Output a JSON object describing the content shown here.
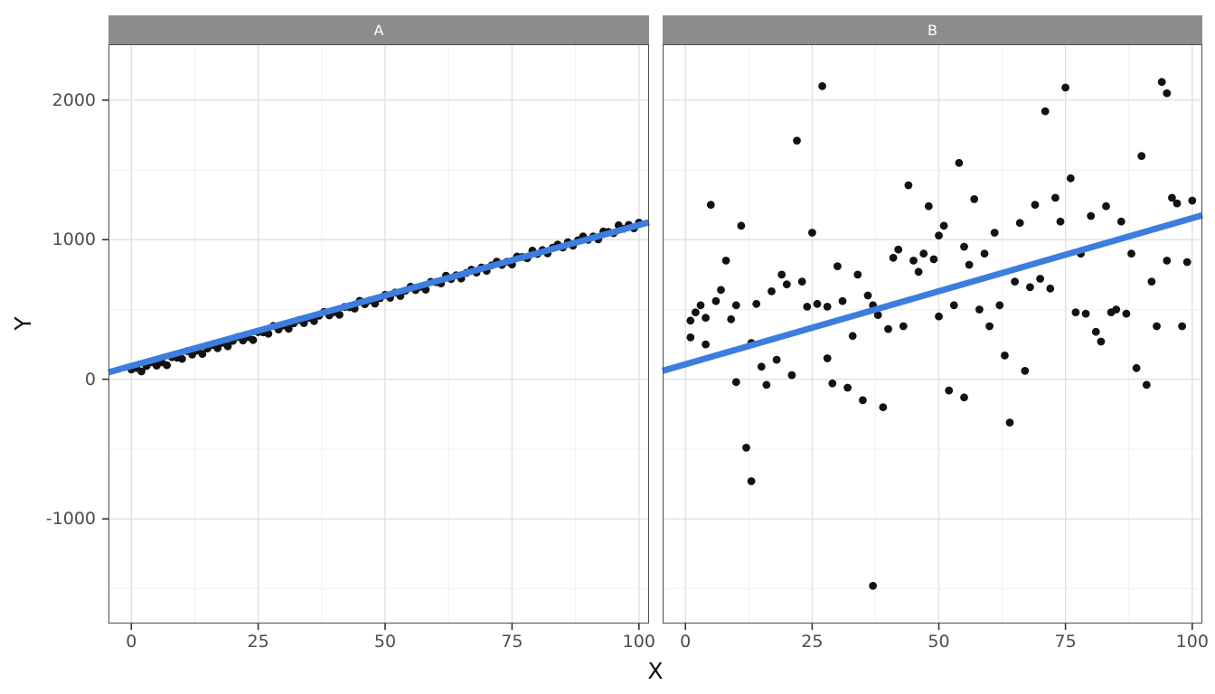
{
  "figure": {
    "background": "#ffffff",
    "strip_bg": "#8c8c8c",
    "strip_text": "#ffffff",
    "panel_bg": "#ffffff",
    "panel_border": "#4d4d4d",
    "grid_major": "#e0e0e0",
    "grid_minor": "#f0f0f0",
    "tick_mark": "#333333",
    "tick_label_color": "#4d4d4d",
    "axis_title_color": "#111111",
    "point_color": "#121212",
    "trend_color": "#3b7edd"
  },
  "chart_data": {
    "type": "scatter",
    "title": "",
    "xlabel": "X",
    "ylabel": "Y",
    "legend": "none",
    "grid": "on",
    "x_domain": [
      -4.5,
      102
    ],
    "y_domain": [
      -1750,
      2400
    ],
    "x_ticks": [
      0,
      25,
      50,
      75,
      100
    ],
    "y_ticks": [
      -1000,
      0,
      1000,
      2000
    ],
    "x_minor": [
      12.5,
      37.5,
      62.5,
      87.5
    ],
    "y_minor": [
      -1500,
      -500,
      500,
      1500
    ],
    "facets": [
      {
        "label": "A",
        "trend": {
          "x": [
            -4.5,
            102
          ],
          "y": [
            50,
            1125
          ]
        },
        "points": [
          [
            0,
            70
          ],
          [
            1,
            81
          ],
          [
            2,
            56
          ],
          [
            3,
            95
          ],
          [
            4,
            122
          ],
          [
            5,
            98
          ],
          [
            6,
            122
          ],
          [
            7,
            101
          ],
          [
            8,
            158
          ],
          [
            9,
            155
          ],
          [
            10,
            146
          ],
          [
            11,
            202
          ],
          [
            12,
            177
          ],
          [
            13,
            205
          ],
          [
            14,
            181
          ],
          [
            15,
            221
          ],
          [
            16,
            245
          ],
          [
            17,
            223
          ],
          [
            18,
            261
          ],
          [
            19,
            236
          ],
          [
            20,
            275
          ],
          [
            21,
            303
          ],
          [
            22,
            278
          ],
          [
            23,
            302
          ],
          [
            24,
            281
          ],
          [
            25,
            338
          ],
          [
            26,
            336
          ],
          [
            27,
            326
          ],
          [
            28,
            382
          ],
          [
            29,
            357
          ],
          [
            30,
            385
          ],
          [
            31,
            362
          ],
          [
            32,
            401
          ],
          [
            33,
            425
          ],
          [
            34,
            403
          ],
          [
            35,
            441
          ],
          [
            36,
            417
          ],
          [
            37,
            455
          ],
          [
            38,
            483
          ],
          [
            39,
            458
          ],
          [
            40,
            482
          ],
          [
            41,
            462
          ],
          [
            42,
            518
          ],
          [
            43,
            516
          ],
          [
            44,
            506
          ],
          [
            45,
            562
          ],
          [
            46,
            538
          ],
          [
            47,
            565
          ],
          [
            48,
            542
          ],
          [
            49,
            581
          ],
          [
            50,
            605
          ],
          [
            51,
            584
          ],
          [
            52,
            621
          ],
          [
            53,
            597
          ],
          [
            54,
            635
          ],
          [
            55,
            663
          ],
          [
            56,
            639
          ],
          [
            57,
            662
          ],
          [
            58,
            642
          ],
          [
            59,
            698
          ],
          [
            60,
            696
          ],
          [
            61,
            687
          ],
          [
            62,
            742
          ],
          [
            63,
            718
          ],
          [
            64,
            745
          ],
          [
            65,
            722
          ],
          [
            66,
            762
          ],
          [
            67,
            785
          ],
          [
            68,
            764
          ],
          [
            69,
            801
          ],
          [
            70,
            777
          ],
          [
            71,
            816
          ],
          [
            72,
            843
          ],
          [
            73,
            819
          ],
          [
            74,
            842
          ],
          [
            75,
            822
          ],
          [
            76,
            879
          ],
          [
            77,
            876
          ],
          [
            78,
            867
          ],
          [
            79,
            922
          ],
          [
            80,
            898
          ],
          [
            81,
            926
          ],
          [
            82,
            902
          ],
          [
            83,
            942
          ],
          [
            84,
            965
          ],
          [
            85,
            944
          ],
          [
            86,
            982
          ],
          [
            87,
            957
          ],
          [
            88,
            996
          ],
          [
            89,
            1023
          ],
          [
            90,
            999
          ],
          [
            91,
            1023
          ],
          [
            92,
            1002
          ],
          [
            93,
            1059
          ],
          [
            94,
            1056
          ],
          [
            95,
            1047
          ],
          [
            96,
            1103
          ],
          [
            97,
            1078
          ],
          [
            98,
            1106
          ],
          [
            99,
            1082
          ],
          [
            100,
            1122
          ]
        ]
      },
      {
        "label": "B",
        "trend": {
          "x": [
            -4.5,
            102
          ],
          "y": [
            60,
            1175
          ]
        },
        "points": [
          [
            1,
            420
          ],
          [
            1,
            300
          ],
          [
            2,
            480
          ],
          [
            3,
            530
          ],
          [
            4,
            250
          ],
          [
            4,
            440
          ],
          [
            5,
            1250
          ],
          [
            6,
            560
          ],
          [
            7,
            640
          ],
          [
            8,
            850
          ],
          [
            9,
            430
          ],
          [
            10,
            -20
          ],
          [
            10,
            530
          ],
          [
            11,
            1100
          ],
          [
            12,
            -490
          ],
          [
            13,
            260
          ],
          [
            13,
            -730
          ],
          [
            14,
            540
          ],
          [
            15,
            90
          ],
          [
            16,
            -40
          ],
          [
            17,
            630
          ],
          [
            18,
            140
          ],
          [
            19,
            750
          ],
          [
            20,
            680
          ],
          [
            21,
            30
          ],
          [
            22,
            1710
          ],
          [
            23,
            700
          ],
          [
            24,
            520
          ],
          [
            25,
            1050
          ],
          [
            26,
            540
          ],
          [
            27,
            2100
          ],
          [
            28,
            150
          ],
          [
            28,
            520
          ],
          [
            29,
            -30
          ],
          [
            30,
            810
          ],
          [
            31,
            560
          ],
          [
            32,
            -60
          ],
          [
            33,
            310
          ],
          [
            34,
            750
          ],
          [
            35,
            -150
          ],
          [
            36,
            600
          ],
          [
            37,
            -1480
          ],
          [
            37,
            530
          ],
          [
            38,
            460
          ],
          [
            39,
            -200
          ],
          [
            40,
            360
          ],
          [
            41,
            870
          ],
          [
            42,
            930
          ],
          [
            43,
            380
          ],
          [
            44,
            1390
          ],
          [
            45,
            850
          ],
          [
            46,
            770
          ],
          [
            47,
            900
          ],
          [
            48,
            1240
          ],
          [
            49,
            860
          ],
          [
            50,
            1030
          ],
          [
            50,
            450
          ],
          [
            51,
            1100
          ],
          [
            52,
            -80
          ],
          [
            53,
            530
          ],
          [
            54,
            1550
          ],
          [
            55,
            950
          ],
          [
            55,
            -130
          ],
          [
            56,
            820
          ],
          [
            57,
            1290
          ],
          [
            58,
            500
          ],
          [
            59,
            900
          ],
          [
            60,
            380
          ],
          [
            61,
            1050
          ],
          [
            62,
            530
          ],
          [
            63,
            170
          ],
          [
            64,
            -310
          ],
          [
            65,
            700
          ],
          [
            66,
            1120
          ],
          [
            67,
            60
          ],
          [
            68,
            660
          ],
          [
            69,
            1250
          ],
          [
            70,
            720
          ],
          [
            71,
            1920
          ],
          [
            72,
            650
          ],
          [
            73,
            1300
          ],
          [
            74,
            1130
          ],
          [
            75,
            2090
          ],
          [
            76,
            1440
          ],
          [
            77,
            480
          ],
          [
            78,
            900
          ],
          [
            79,
            470
          ],
          [
            80,
            1170
          ],
          [
            81,
            340
          ],
          [
            82,
            270
          ],
          [
            83,
            1240
          ],
          [
            84,
            480
          ],
          [
            85,
            500
          ],
          [
            86,
            1130
          ],
          [
            87,
            470
          ],
          [
            88,
            900
          ],
          [
            89,
            80
          ],
          [
            90,
            1600
          ],
          [
            91,
            -40
          ],
          [
            92,
            700
          ],
          [
            93,
            380
          ],
          [
            94,
            2130
          ],
          [
            95,
            850
          ],
          [
            95,
            2050
          ],
          [
            96,
            1300
          ],
          [
            97,
            1260
          ],
          [
            98,
            380
          ],
          [
            99,
            840
          ],
          [
            100,
            1280
          ]
        ]
      }
    ]
  }
}
